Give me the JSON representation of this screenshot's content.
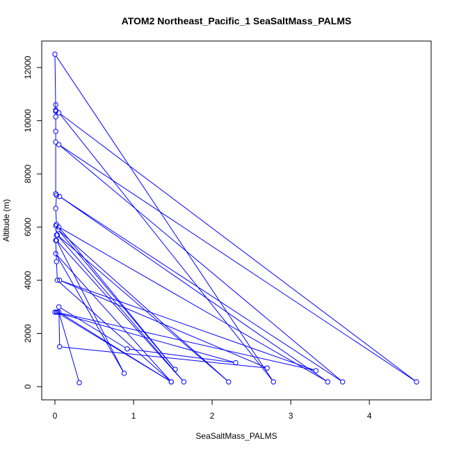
{
  "chart_data": {
    "type": "line",
    "title": "ATOM2 Northeast_Pacific_1 SeaSaltMass_PALMS",
    "xlabel": "SeaSaltMass_PALMS",
    "ylabel": "Altitude (m)",
    "xlim": [
      0,
      4.6
    ],
    "ylim": [
      0,
      12500
    ],
    "xticks": [
      0,
      1,
      2,
      3,
      4
    ],
    "yticks": [
      0,
      2000,
      4000,
      6000,
      8000,
      10000,
      12000
    ],
    "grid": false,
    "legend": "none",
    "series": [
      {
        "color": "#0000ff",
        "points": [
          [
            0.31,
            150
          ],
          [
            0.05,
            2800
          ],
          [
            1.48,
            180
          ],
          [
            0.03,
            4000
          ],
          [
            0.02,
            4700
          ],
          [
            0.01,
            5500
          ],
          [
            0.02,
            5700
          ],
          [
            0.01,
            6050
          ],
          [
            0.02,
            6100
          ],
          [
            0.01,
            6700
          ],
          [
            0.02,
            7200
          ],
          [
            0.01,
            7250
          ],
          [
            0.01,
            9200
          ],
          [
            0.01,
            9600
          ],
          [
            0.01,
            10150
          ],
          [
            0.01,
            10400
          ],
          [
            0.01,
            10600
          ],
          [
            0.01,
            10350
          ],
          [
            0.01,
            10400
          ],
          [
            0.0,
            12500
          ],
          [
            2.78,
            180
          ],
          [
            0.05,
            10300
          ],
          [
            4.6,
            180
          ],
          [
            0.05,
            9100
          ],
          [
            3.66,
            180
          ],
          [
            0.06,
            7150
          ],
          [
            3.47,
            180
          ],
          [
            0.05,
            6000
          ],
          [
            1.53,
            650
          ],
          [
            0.04,
            5900
          ],
          [
            2.21,
            180
          ],
          [
            0.03,
            5700
          ],
          [
            1.64,
            180
          ],
          [
            0.02,
            5500
          ],
          [
            0.88,
            500
          ],
          [
            0.01,
            5000
          ],
          [
            1.48,
            180
          ],
          [
            0.02,
            2800
          ],
          [
            3.32,
            600
          ],
          [
            0.06,
            4000
          ],
          [
            2.7,
            700
          ],
          [
            0.06,
            1500
          ],
          [
            0.05,
            3000
          ],
          [
            0.92,
            1420
          ],
          [
            2.3,
            900
          ],
          [
            0.0,
            2800
          ],
          [
            0.03,
            2800
          ]
        ]
      }
    ]
  }
}
